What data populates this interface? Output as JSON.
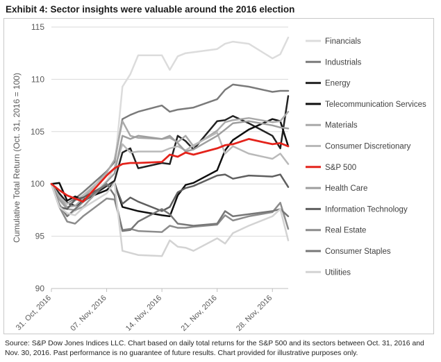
{
  "title": "Exhibit 4: Sector insights were valuable around the 2016 election",
  "source_note": "Source: S&P Dow Jones Indices LLC. Chart based on daily total returns for the S&P 500 and its sectors between Oct. 31, 2016 and Nov. 30, 2016. Past performance is no guarantee of future results. Chart provided for illustrative purposes only.",
  "chart_data": {
    "type": "line",
    "ylabel": "Cumulative Total Return (Oct. 31, 2016 = 100)",
    "xlabel": "",
    "ylim": [
      90,
      115
    ],
    "yticks": [
      90,
      95,
      100,
      105,
      110,
      115
    ],
    "xtick_labels": [
      "31. Oct, 2016",
      "07. Nov, 2016",
      "14. Nov, 2016",
      "21. Nov, 2016",
      "28. Nov, 2016"
    ],
    "xtick_days": [
      0,
      7,
      14,
      21,
      28
    ],
    "x_days": [
      0,
      1,
      2,
      3,
      4,
      7,
      8,
      9,
      10,
      11,
      14,
      15,
      16,
      17,
      18,
      21,
      22,
      23,
      25,
      28,
      29,
      30
    ],
    "grid": "horizontal",
    "legend_position": "right",
    "series": [
      {
        "name": "Financials",
        "color": "#dcdcdc",
        "width": 2.5,
        "values": [
          100,
          98.2,
          97.0,
          97.4,
          98.2,
          100.3,
          101.5,
          109.3,
          110.5,
          112.3,
          112.3,
          110.9,
          112.2,
          112.5,
          112.6,
          112.9,
          113.4,
          113.6,
          113.4,
          112.0,
          112.4,
          114.0
        ]
      },
      {
        "name": "Industrials",
        "color": "#7a7a7a",
        "width": 2.5,
        "values": [
          100,
          98.7,
          98.1,
          98.6,
          99.2,
          101.2,
          102.1,
          106.2,
          106.6,
          106.9,
          107.5,
          106.9,
          107.1,
          107.2,
          107.3,
          108.1,
          109.0,
          109.5,
          109.3,
          108.8,
          108.9,
          108.9
        ]
      },
      {
        "name": "Energy",
        "color": "#222222",
        "width": 2.5,
        "values": [
          100,
          99.1,
          98.2,
          97.9,
          98.3,
          99.8,
          100.3,
          103.0,
          103.4,
          101.5,
          102.0,
          101.9,
          104.6,
          104.1,
          103.3,
          106.0,
          106.1,
          106.5,
          105.8,
          104.6,
          103.4,
          108.4
        ]
      },
      {
        "name": "Telecommunication Services",
        "color": "#0f0f0f",
        "width": 2.5,
        "values": [
          100,
          100.1,
          98.4,
          98.8,
          98.5,
          99.4,
          100.1,
          97.8,
          97.6,
          97.4,
          97.0,
          96.9,
          98.9,
          99.9,
          100.1,
          101.3,
          103.2,
          104.2,
          105.2,
          106.2,
          106.0,
          103.6
        ]
      },
      {
        "name": "Materials",
        "color": "#a9a9a9",
        "width": 2.5,
        "values": [
          100,
          98.6,
          97.8,
          97.9,
          98.6,
          101.1,
          102.3,
          106.0,
          104.6,
          104.4,
          104.3,
          104.4,
          104.0,
          104.6,
          103.6,
          105.1,
          105.9,
          106.1,
          106.3,
          105.9,
          106.0,
          106.9
        ]
      },
      {
        "name": "Consumer Discretionary",
        "color": "#b9b9b9",
        "width": 2.5,
        "values": [
          100,
          98.8,
          98.1,
          98.4,
          98.9,
          100.9,
          101.5,
          103.8,
          103.0,
          103.1,
          103.1,
          103.4,
          103.6,
          103.2,
          103.7,
          104.9,
          102.9,
          103.6,
          102.9,
          102.4,
          102.9,
          101.9
        ]
      },
      {
        "name": "S&P 500",
        "color": "#e4231b",
        "width": 2.8,
        "values": [
          100,
          99.4,
          98.9,
          98.6,
          98.3,
          100.8,
          101.5,
          101.9,
          102.0,
          102.0,
          102.1,
          102.8,
          102.6,
          103.0,
          102.8,
          103.4,
          103.7,
          103.8,
          104.3,
          103.8,
          103.9,
          103.6
        ]
      },
      {
        "name": "Health Care",
        "color": "#9e9e9e",
        "width": 2.5,
        "values": [
          100,
          98.5,
          97.6,
          97.5,
          97.8,
          100.2,
          101.0,
          104.6,
          104.3,
          104.6,
          104.3,
          104.6,
          103.9,
          103.1,
          103.3,
          104.6,
          105.2,
          105.8,
          106.0,
          105.6,
          105.4,
          105.3
        ]
      },
      {
        "name": "Information Technology",
        "color": "#5f5f5f",
        "width": 2.5,
        "values": [
          100,
          97.8,
          97.6,
          98.5,
          98.7,
          99.9,
          100.0,
          98.1,
          98.7,
          98.3,
          97.4,
          97.8,
          99.2,
          99.6,
          99.8,
          100.8,
          100.9,
          100.5,
          100.8,
          100.7,
          100.9,
          99.7
        ]
      },
      {
        "name": "Real Estate",
        "color": "#8c8c8c",
        "width": 2.5,
        "values": [
          100,
          97.8,
          96.4,
          96.2,
          96.9,
          98.6,
          98.5,
          95.6,
          95.7,
          95.5,
          95.4,
          96.0,
          95.8,
          95.8,
          95.9,
          96.1,
          97.0,
          96.5,
          96.9,
          97.3,
          98.2,
          95.7
        ]
      },
      {
        "name": "Consumer Staples",
        "color": "#777777",
        "width": 2.5,
        "values": [
          100,
          98.0,
          96.9,
          97.6,
          98.3,
          100.0,
          98.9,
          95.5,
          95.6,
          96.4,
          97.6,
          97.1,
          96.2,
          96.1,
          96.0,
          96.2,
          97.4,
          96.9,
          97.1,
          97.4,
          97.6,
          96.9
        ]
      },
      {
        "name": "Utilities",
        "color": "#d3d3d3",
        "width": 2.5,
        "values": [
          100,
          97.8,
          97.2,
          97.0,
          97.7,
          99.1,
          100.1,
          93.6,
          93.4,
          93.2,
          93.1,
          94.6,
          94.0,
          93.9,
          93.6,
          94.8,
          94.3,
          95.3,
          96.0,
          96.9,
          97.6,
          94.6
        ]
      }
    ]
  }
}
